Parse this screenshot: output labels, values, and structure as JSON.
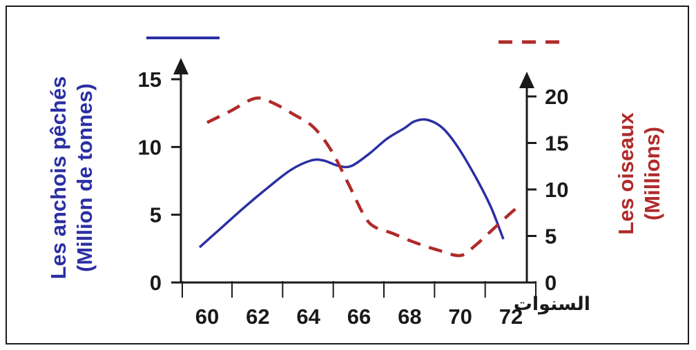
{
  "chart_data": {
    "type": "line",
    "xlabel": "السنوات",
    "x_ticks": [
      "60",
      "62",
      "64",
      "66",
      "68",
      "70",
      "72"
    ],
    "x_range": [
      58,
      73
    ],
    "y_left": {
      "label_line1": "Les anchois pêchés",
      "label_line2": "(Million de tonnes)",
      "range": [
        0,
        15
      ],
      "ticks": [
        "0",
        "5",
        "10",
        "15"
      ]
    },
    "y_right": {
      "label_line1": "Les oiseaux",
      "label_line2": "(Millions)",
      "range": [
        0,
        20
      ],
      "ticks": [
        "0",
        "5",
        "10",
        "15",
        "20"
      ]
    },
    "series": [
      {
        "axis": "left",
        "color": "#2b2fa3",
        "style": "solid",
        "points": [
          [
            59.7,
            2.6
          ],
          [
            60.6,
            4.1
          ],
          [
            61.5,
            5.6
          ],
          [
            62.4,
            7.0
          ],
          [
            63.3,
            8.3
          ],
          [
            64.1,
            9.0
          ],
          [
            64.6,
            9.0
          ],
          [
            65.2,
            8.6
          ],
          [
            65.7,
            8.6
          ],
          [
            66.4,
            9.5
          ],
          [
            67.1,
            10.6
          ],
          [
            67.8,
            11.4
          ],
          [
            68.2,
            11.9
          ],
          [
            68.7,
            12.0
          ],
          [
            69.3,
            11.4
          ],
          [
            69.9,
            10.0
          ],
          [
            70.6,
            7.8
          ],
          [
            71.2,
            5.6
          ],
          [
            71.7,
            3.2
          ]
        ]
      },
      {
        "axis": "right",
        "color": "#b02a2a",
        "style": "dashed",
        "points": [
          [
            60.0,
            17.2
          ],
          [
            60.9,
            18.4
          ],
          [
            61.9,
            19.8
          ],
          [
            62.6,
            19.3
          ],
          [
            63.4,
            18.1
          ],
          [
            64.2,
            16.7
          ],
          [
            64.9,
            14.2
          ],
          [
            65.6,
            10.5
          ],
          [
            66.2,
            7.2
          ],
          [
            66.6,
            6.0
          ],
          [
            67.3,
            5.3
          ],
          [
            68.2,
            4.3
          ],
          [
            69.1,
            3.5
          ],
          [
            70.0,
            2.9
          ],
          [
            70.6,
            4.0
          ],
          [
            71.2,
            5.5
          ],
          [
            71.8,
            7.0
          ],
          [
            72.3,
            8.2
          ]
        ]
      }
    ]
  }
}
